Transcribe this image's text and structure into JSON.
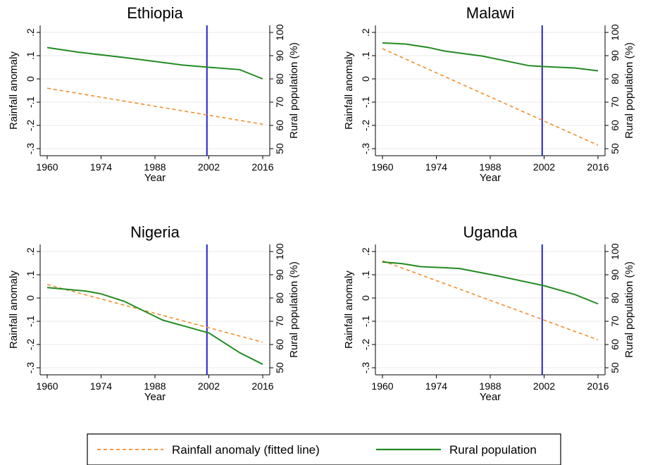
{
  "chart_data": {
    "type": "line",
    "x_ticks": [
      1960,
      1974,
      1988,
      2002,
      2016
    ],
    "xlim": [
      1960,
      2016
    ],
    "xlabel": "Year",
    "ylabel_left": "Rainfall anomaly",
    "ylabel_right": "Rural population (%)",
    "y_left_ticks": [
      ".2",
      ".1",
      "0",
      "-.1",
      "-.2",
      "-.3"
    ],
    "y_left_values": [
      0.2,
      0.1,
      0,
      -0.1,
      -0.2,
      -0.3
    ],
    "ylim_left": [
      -0.3,
      0.2
    ],
    "y_right_ticks": [
      "100",
      "90",
      "80",
      "70",
      "60",
      "50"
    ],
    "y_right_values": [
      100,
      90,
      80,
      70,
      60,
      50
    ],
    "ylim_right": [
      50,
      100
    ],
    "vertical_line_year": 2001.5,
    "grid": true,
    "legend_position": "bottom",
    "series_style": {
      "rainfall": {
        "name": "Rainfall anomaly (fitted line)",
        "color": "#f28e2b",
        "dash": "dashed",
        "axis": "left"
      },
      "rural": {
        "name": "Rural population",
        "color": "#228B22",
        "dash": "solid",
        "axis": "right"
      },
      "vline_color": "#2222cc"
    },
    "panels": [
      {
        "title": "Ethiopia",
        "rainfall": {
          "x": [
            1960,
            2016
          ],
          "y": [
            -0.04,
            -0.195
          ]
        },
        "rural": {
          "x": [
            1960,
            1968,
            1980,
            1995,
            2002,
            2010,
            2016
          ],
          "y": [
            93.5,
            91.5,
            89.2,
            86,
            85,
            84,
            80
          ]
        }
      },
      {
        "title": "Malawi",
        "rainfall": {
          "x": [
            1960,
            2016
          ],
          "y": [
            0.13,
            -0.285
          ]
        },
        "rural": {
          "x": [
            1960,
            1966,
            1972,
            1976,
            1986,
            1998,
            2002,
            2010,
            2016
          ],
          "y": [
            95.5,
            95,
            93.5,
            92,
            89.8,
            85.7,
            85.3,
            84.7,
            83.5
          ]
        }
      },
      {
        "title": "Nigeria",
        "rainfall": {
          "x": [
            1960,
            2016
          ],
          "y": [
            0.058,
            -0.19
          ]
        },
        "rural": {
          "x": [
            1960,
            1970,
            1974,
            1980,
            1990,
            2000,
            2002,
            2010,
            2016
          ],
          "y": [
            84.5,
            83,
            81.8,
            78.6,
            70.5,
            65.9,
            65,
            56.5,
            51.5
          ]
        }
      },
      {
        "title": "Uganda",
        "rainfall": {
          "x": [
            1960,
            2016
          ],
          "y": [
            0.16,
            -0.18
          ]
        },
        "rural": {
          "x": [
            1960,
            1965,
            1970,
            1980,
            1990,
            2002,
            2010,
            2016
          ],
          "y": [
            95.5,
            94.8,
            93.5,
            92.7,
            89.5,
            85.3,
            81.5,
            77.5
          ]
        }
      }
    ]
  }
}
